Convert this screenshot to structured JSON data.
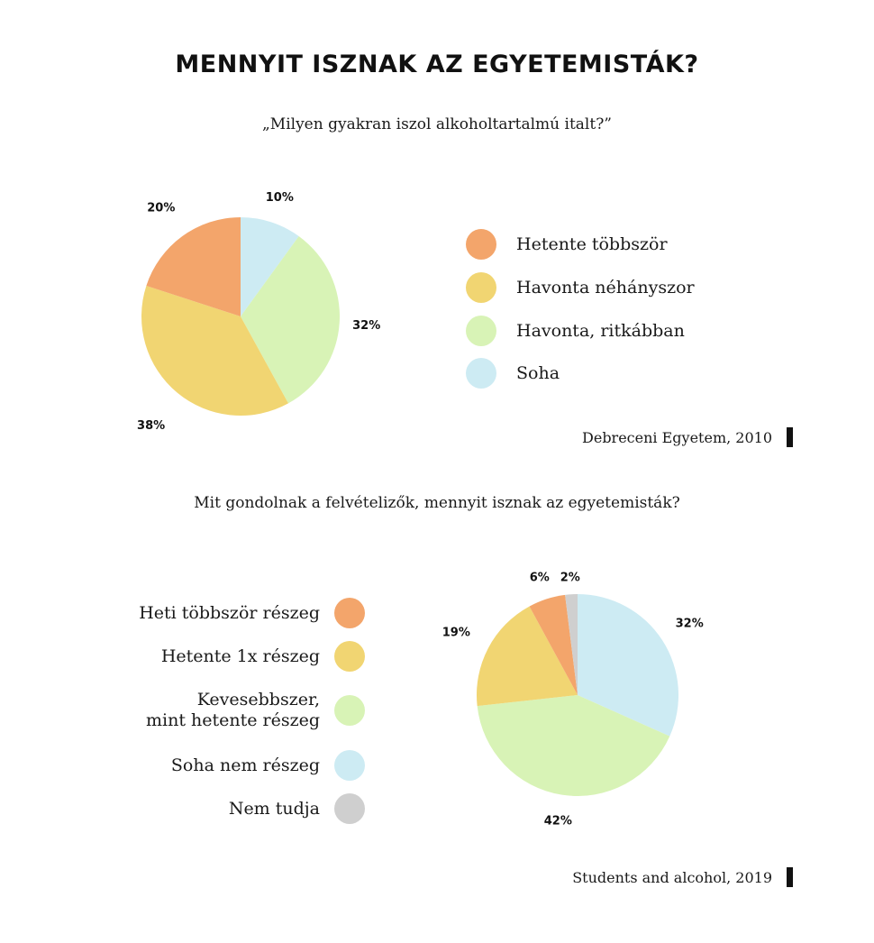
{
  "title": "MENNYIT ISZNAK AZ EGYETEMISTÁK?",
  "section1": {
    "question": "„Milyen gyakran iszol alkoholtartalmú italt?”",
    "source": "Debreceni Egyetem, 2010"
  },
  "section2": {
    "question": "Mit gondolnak a felvételizők, mennyit isznak az egyetemisták?",
    "source": "Students and alcohol, 2019"
  },
  "chart_data": [
    {
      "type": "pie",
      "title": "„Milyen gyakran iszol alkoholtartalmú italt?”",
      "slices": [
        {
          "label": "Soha",
          "value": 10,
          "display": "10%",
          "color": "#cdebf3"
        },
        {
          "label": "Havonta, ritkábban",
          "value": 32,
          "display": "32%",
          "color": "#d8f3b6"
        },
        {
          "label": "Havonta néhányszor",
          "value": 38,
          "display": "38%",
          "color": "#f1d572"
        },
        {
          "label": "Hetente többször",
          "value": 20,
          "display": "20%",
          "color": "#f3a56b"
        }
      ],
      "legend": [
        {
          "label": "Hetente többször",
          "color": "#f3a56b"
        },
        {
          "label": "Havonta néhányszor",
          "color": "#f1d572"
        },
        {
          "label": "Havonta, ritkábban",
          "color": "#d8f3b6"
        },
        {
          "label": "Soha",
          "color": "#cdebf3"
        }
      ],
      "legend_position": "right"
    },
    {
      "type": "pie",
      "title": "Mit gondolnak a felvételizők, mennyit isznak az egyetemisták?",
      "slices": [
        {
          "label": "Soha nem részeg",
          "value": 32,
          "display": "32%",
          "color": "#cdebf3"
        },
        {
          "label": "Kevesebbszer, mint hetente részeg",
          "value": 42,
          "display": "42%",
          "color": "#d8f3b6"
        },
        {
          "label": "Hetente 1x részeg",
          "value": 19,
          "display": "19%",
          "color": "#f1d572"
        },
        {
          "label": "Heti többször részeg",
          "value": 6,
          "display": "6%",
          "color": "#f3a56b"
        },
        {
          "label": "Nem tudja",
          "value": 2,
          "display": "2%",
          "color": "#cfcfcf"
        }
      ],
      "legend": [
        {
          "label": "Heti többször részeg",
          "color": "#f3a56b"
        },
        {
          "label": "Hetente 1x részeg",
          "color": "#f1d572"
        },
        {
          "label": "Kevesebbszer,\nmint hetente részeg",
          "color": "#d8f3b6"
        },
        {
          "label": "Soha nem részeg",
          "color": "#cdebf3"
        },
        {
          "label": "Nem tudja",
          "color": "#cfcfcf"
        }
      ],
      "legend_position": "left"
    }
  ]
}
